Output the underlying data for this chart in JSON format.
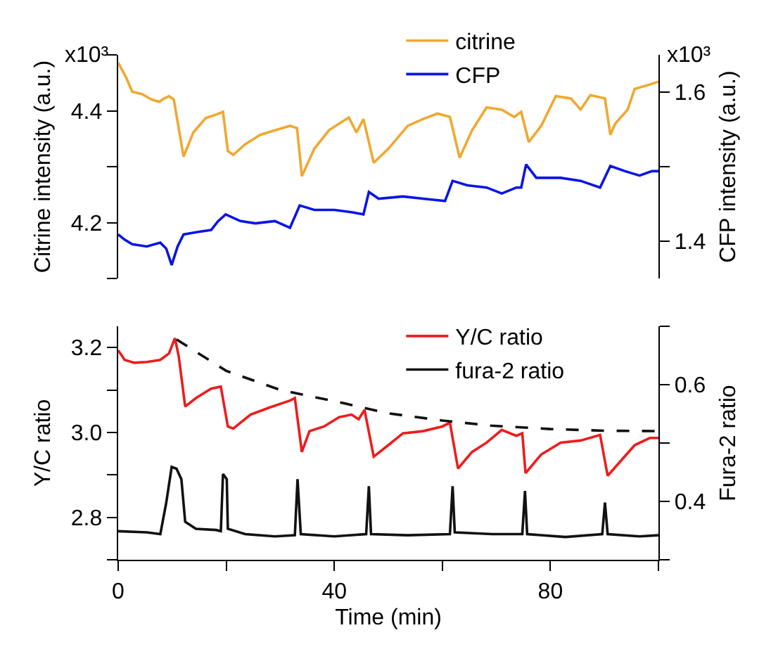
{
  "chart_data": [
    {
      "type": "line",
      "ylabel": "Citrine intensity (a.u.)",
      "y2label": "CFP intensity (a.u.)",
      "annotations": [
        "x10³",
        "x10³"
      ],
      "xlim": [
        0,
        100
      ],
      "ylim": [
        4.1,
        4.5
      ],
      "yticks": [
        {
          "value": 4.1,
          "label": null
        },
        4.2,
        {
          "value": 4.3,
          "label": null
        },
        4.4,
        {
          "value": 4.5,
          "label": null
        }
      ],
      "y2lim": [
        1.35,
        1.65
      ],
      "y2ticks": [
        1.4,
        {
          "value": 1.5,
          "label": null
        },
        1.6
      ],
      "tick_labels": "y",
      "legend": "top",
      "grid": false,
      "marker": "none",
      "line_style": "solid",
      "series": [
        {
          "name": "citrine",
          "color": "#f0a830",
          "x": [
            0,
            1.5,
            2.6,
            4.4,
            6.2,
            7.6,
            8.5,
            9.4,
            10.3,
            12.1,
            13.9,
            16.2,
            18.1,
            19.4,
            20.3,
            21.3,
            23.5,
            26.3,
            29,
            31.8,
            33.1,
            34,
            36.3,
            39,
            40.9,
            42.7,
            44.1,
            45.4,
            47.3,
            50,
            53.6,
            56.4,
            59.1,
            61.4,
            63.2,
            65.5,
            68.2,
            71,
            73.3,
            74.6,
            76,
            78.3,
            81,
            83.8,
            85.6,
            87.4,
            90.1,
            91.1,
            92,
            94.3,
            95.6,
            98.4,
            100
          ],
          "values": [
            4.486,
            4.459,
            4.434,
            4.43,
            4.42,
            4.416,
            4.422,
            4.426,
            4.42,
            4.318,
            4.361,
            4.387,
            4.393,
            4.398,
            4.328,
            4.321,
            4.34,
            4.357,
            4.365,
            4.373,
            4.369,
            4.283,
            4.332,
            4.365,
            4.377,
            4.388,
            4.361,
            4.385,
            4.307,
            4.332,
            4.373,
            4.385,
            4.395,
            4.389,
            4.316,
            4.365,
            4.406,
            4.402,
            4.389,
            4.398,
            4.344,
            4.373,
            4.426,
            4.422,
            4.402,
            4.428,
            4.422,
            4.357,
            4.377,
            4.402,
            4.439,
            4.447,
            4.452
          ]
        },
        {
          "name": "CFP",
          "color": "#0a14e6",
          "axis": "y2",
          "x": [
            0,
            1.2,
            2.6,
            5.3,
            7.8,
            8.9,
            9.9,
            11,
            12.1,
            14.4,
            17.2,
            18.5,
            19.9,
            22.6,
            25.4,
            29,
            31.8,
            33.6,
            36.3,
            40,
            43.2,
            45.4,
            46.4,
            48.2,
            52.7,
            56.4,
            60.5,
            61.9,
            64.6,
            68.2,
            71,
            73.7,
            74.6,
            75.5,
            77.4,
            81.9,
            85.6,
            89.2,
            91.1,
            93.8,
            96.5,
            98.8,
            100
          ],
          "values": [
            1.409,
            1.402,
            1.396,
            1.393,
            1.398,
            1.39,
            1.368,
            1.393,
            1.409,
            1.412,
            1.415,
            1.427,
            1.436,
            1.427,
            1.424,
            1.427,
            1.418,
            1.448,
            1.442,
            1.442,
            1.439,
            1.436,
            1.466,
            1.457,
            1.46,
            1.457,
            1.454,
            1.481,
            1.475,
            1.472,
            1.464,
            1.472,
            1.472,
            1.503,
            1.485,
            1.485,
            1.481,
            1.472,
            1.501,
            1.494,
            1.488,
            1.494,
            1.494
          ]
        }
      ]
    },
    {
      "type": "line",
      "xlabel": "Time (min)",
      "ylabel": "Y/C ratio",
      "y2label": "Fura-2 ratio",
      "xlim": [
        0,
        100
      ],
      "xticks": [
        0,
        {
          "value": 20,
          "label": null
        },
        40,
        {
          "value": 60,
          "label": null
        },
        80,
        {
          "value": 100,
          "label": null
        }
      ],
      "ylim": [
        2.7,
        3.25
      ],
      "yticks": [
        {
          "value": 2.7,
          "label": null
        },
        {
          "value": 2.8,
          "label": "2.8"
        },
        {
          "value": 2.9,
          "label": null
        },
        {
          "value": 3.0,
          "label": "3.0"
        },
        {
          "value": 3.1,
          "label": null
        },
        {
          "value": 3.2,
          "label": "3.2"
        }
      ],
      "y2lim": [
        0.3,
        0.7
      ],
      "y2ticks": [
        {
          "value": 0.3,
          "label": null
        },
        0.4,
        {
          "value": 0.5,
          "label": null
        },
        0.6,
        {
          "value": 0.7,
          "label": null
        }
      ],
      "legend": "top right",
      "grid": false,
      "marker": "none",
      "line_style": "solid",
      "series": [
        {
          "name": "Y/C ratio",
          "color": "#ee1c1c",
          "x": [
            0,
            1.2,
            3,
            5.3,
            7.8,
            9.4,
            10.5,
            11.2,
            12.4,
            14.4,
            17.2,
            19,
            20.3,
            21.3,
            24.5,
            28.1,
            31.8,
            32.7,
            34,
            35.4,
            38.1,
            40.9,
            43.2,
            44.5,
            45.6,
            47.3,
            50,
            52.7,
            56.4,
            60,
            61.4,
            62.9,
            65.5,
            68.2,
            71,
            73.7,
            74.8,
            75.4,
            78.3,
            81.9,
            85.6,
            89.2,
            90.6,
            92.9,
            95.6,
            98.4,
            100
          ],
          "values": [
            3.193,
            3.171,
            3.164,
            3.166,
            3.171,
            3.186,
            3.222,
            3.18,
            3.061,
            3.081,
            3.103,
            3.108,
            3.014,
            3.009,
            3.042,
            3.059,
            3.075,
            3.081,
            2.954,
            3.003,
            3.014,
            3.036,
            3.042,
            3.031,
            3.053,
            2.943,
            2.97,
            2.998,
            3.003,
            3.014,
            3.023,
            2.915,
            2.954,
            2.976,
            3.006,
            2.992,
            2.998,
            2.904,
            2.948,
            2.976,
            2.981,
            2.994,
            2.898,
            2.931,
            2.97,
            2.987,
            2.987
          ]
        },
        {
          "name": "fura-2 ratio",
          "color": "#111111",
          "axis": "y2",
          "x": [
            0,
            5.3,
            7.8,
            8.9,
            9.9,
            10.8,
            11.7,
            12.4,
            14.4,
            18.1,
            19,
            19.4,
            20.1,
            20.3,
            23.5,
            29,
            32.7,
            33.2,
            33.8,
            40,
            45.9,
            46.4,
            46.8,
            53.6,
            61.4,
            61.9,
            62.3,
            69.2,
            74.8,
            75.3,
            75.7,
            82.8,
            89.6,
            90.1,
            90.6,
            96.5,
            100
          ],
          "values": [
            0.349,
            0.347,
            0.344,
            0.398,
            0.459,
            0.456,
            0.438,
            0.365,
            0.353,
            0.351,
            0.349,
            0.447,
            0.438,
            0.353,
            0.344,
            0.34,
            0.342,
            0.438,
            0.344,
            0.34,
            0.344,
            0.426,
            0.344,
            0.342,
            0.344,
            0.426,
            0.347,
            0.344,
            0.344,
            0.418,
            0.344,
            0.339,
            0.344,
            0.398,
            0.344,
            0.34,
            0.342
          ]
        },
        {
          "color": "#111111",
          "line_style": "dashed",
          "x": [
            10.8,
            20,
            30,
            41.7,
            50,
            60,
            69,
            80,
            90,
            100
          ],
          "values": [
            3.219,
            3.145,
            3.1,
            3.069,
            3.045,
            3.028,
            3.016,
            3.008,
            3.004,
            3.003
          ]
        }
      ]
    }
  ]
}
